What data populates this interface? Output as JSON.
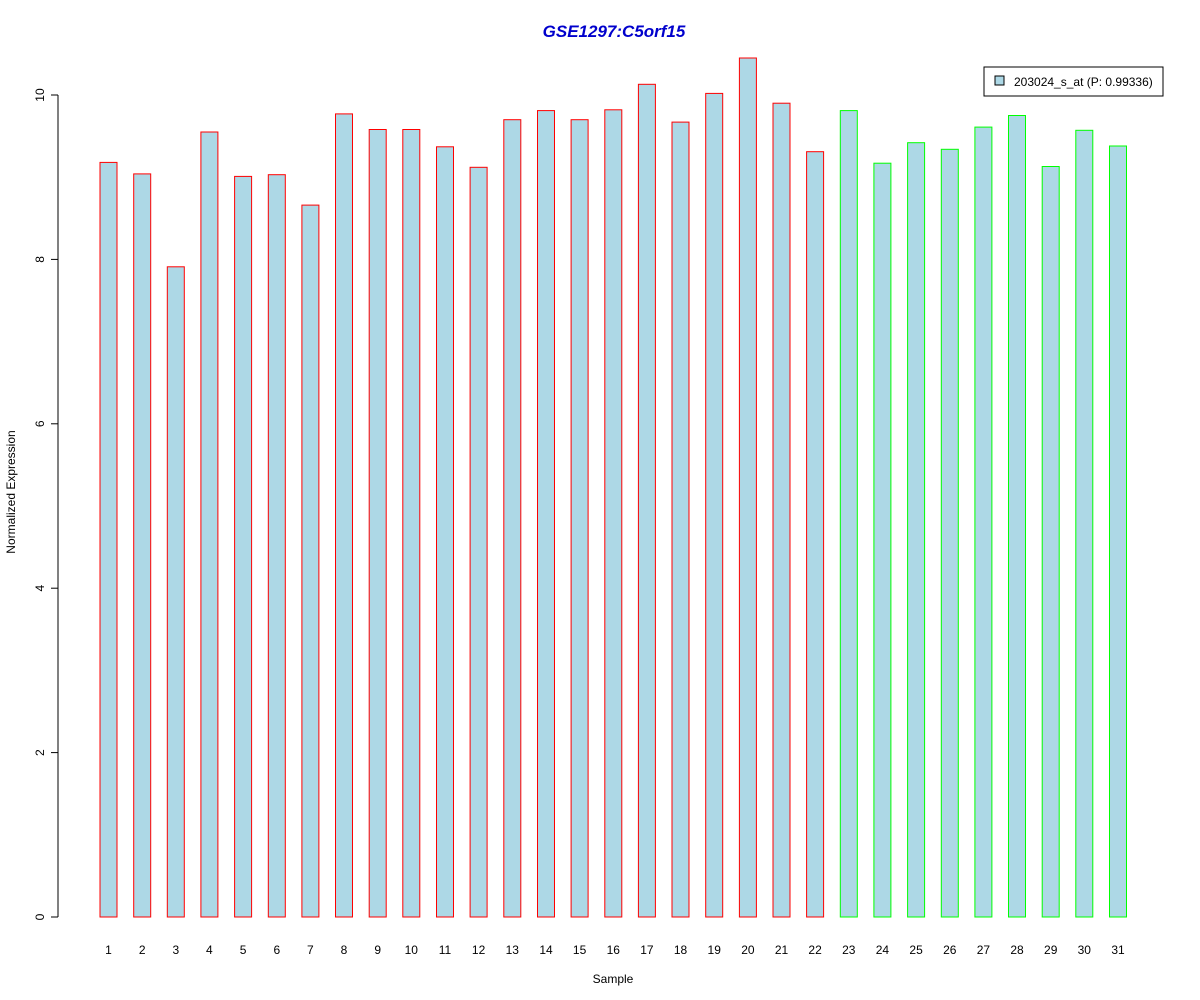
{
  "chart_data": {
    "type": "bar",
    "title": "GSE1297:C5orf15",
    "xlabel": "Sample",
    "ylabel": "Normalized Expression",
    "ylim": [
      0,
      10.5
    ],
    "yticks": [
      0,
      2,
      4,
      6,
      8,
      10
    ],
    "grid": false,
    "legend_position": "top-right",
    "categories": [
      "1",
      "2",
      "3",
      "4",
      "5",
      "6",
      "7",
      "8",
      "9",
      "10",
      "11",
      "12",
      "13",
      "14",
      "15",
      "16",
      "17",
      "18",
      "19",
      "20",
      "21",
      "22",
      "23",
      "24",
      "25",
      "26",
      "27",
      "28",
      "29",
      "30",
      "31"
    ],
    "series": [
      {
        "name": "203024_s_at (P: 0.99336)",
        "values": [
          9.18,
          9.04,
          7.91,
          9.55,
          9.01,
          9.03,
          8.66,
          9.77,
          9.58,
          9.58,
          9.37,
          9.12,
          9.7,
          9.81,
          9.7,
          9.82,
          10.13,
          9.67,
          10.02,
          10.45,
          9.9,
          9.31,
          9.81,
          9.17,
          9.42,
          9.34,
          9.61,
          9.75,
          9.13,
          9.57,
          9.38
        ],
        "groups": [
          "red",
          "red",
          "red",
          "red",
          "red",
          "red",
          "red",
          "red",
          "red",
          "red",
          "red",
          "red",
          "red",
          "red",
          "red",
          "red",
          "red",
          "red",
          "red",
          "red",
          "red",
          "red",
          "green",
          "green",
          "green",
          "green",
          "green",
          "green",
          "green",
          "green",
          "green"
        ]
      }
    ],
    "colors": {
      "bar_fill": "#add8e6",
      "group_red": "#ff0000",
      "group_green": "#00ff00",
      "title": "#0000cc",
      "axis": "#000000"
    }
  }
}
